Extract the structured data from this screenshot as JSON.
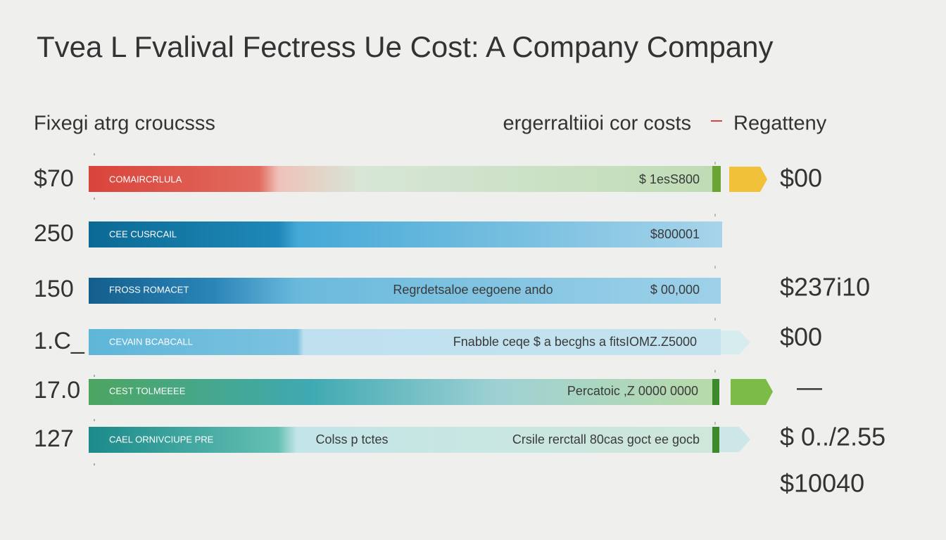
{
  "header": {
    "title": "Tvea L  Fvalival Fectress Ue Cost: A Company Company",
    "left": "Fixegi atrg croucsss",
    "middle": "ergerraltiioi cor costs",
    "right": "Regatteny"
  },
  "rows": [
    {
      "label": "$70",
      "bar_label": "COMAIRCRLULA",
      "amount": "$ 1esS800",
      "side_value": "$00"
    },
    {
      "label": "250",
      "bar_label": "CEE CUSRCAIL",
      "amount": "$800001"
    },
    {
      "label": "150",
      "bar_label": "FROSS ROMACET",
      "note": "Regrdetsaloe eegoene ando",
      "amount": "$ 00,000",
      "side_value": "$237i10"
    },
    {
      "label": "1.C_",
      "bar_label": "CEVAIN BCABCALL",
      "note": "Fnabble ceqe   $ a becghs a fitsIOMZ.Z5000",
      "side_value": "$00"
    },
    {
      "label": "17.0",
      "bar_label": "CEST TOLMEEEE",
      "note": "Percatoic ,Z 0000 0000",
      "side_value": "—"
    },
    {
      "label": "127",
      "bar_label": "CAEL  ORNIVCIUPE PRE",
      "note": "Colss p tctes",
      "amount": "Crsile rerctall   80cas goct ee gocb",
      "side_value": "$ 0../2.55"
    }
  ],
  "footer_value": "$10040"
}
